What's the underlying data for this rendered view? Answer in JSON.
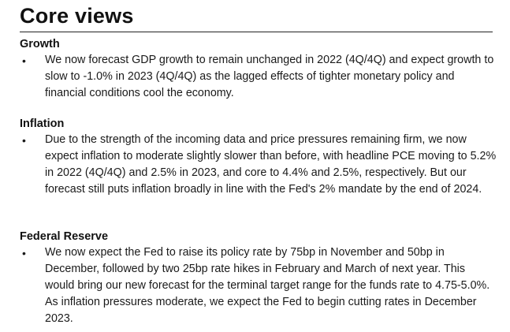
{
  "title": "Core views",
  "sections": [
    {
      "heading": "Growth",
      "bullet": "•",
      "text": "We now forecast GDP growth to remain unchanged in 2022 (4Q/4Q) and expect growth to slow to -1.0% in 2023 (4Q/4Q) as the lagged effects of tighter monetary policy and financial conditions cool the economy."
    },
    {
      "heading": "Inflation",
      "bullet": "•",
      "text": "Due to the strength of the incoming data and price pressures remaining firm, we now expect inflation to moderate slightly slower than before, with headline PCE moving to 5.2% in 2022 (4Q/4Q) and 2.5% in 2023, and core to 4.4% and 2.5%, respectively. But our forecast still puts inflation broadly in line with the Fed's 2% mandate by the end of 2024."
    },
    {
      "heading": "Federal Reserve",
      "bullet": "•",
      "text": "We now expect the Fed to raise its policy rate by 75bp in November and 50bp in December, followed by two 25bp rate hikes in February and March of next year. This would bring our new forecast for the terminal target range for the funds rate to 4.75-5.0%. As inflation pressures moderate, we expect the Fed to begin cutting rates in December 2023."
    }
  ]
}
